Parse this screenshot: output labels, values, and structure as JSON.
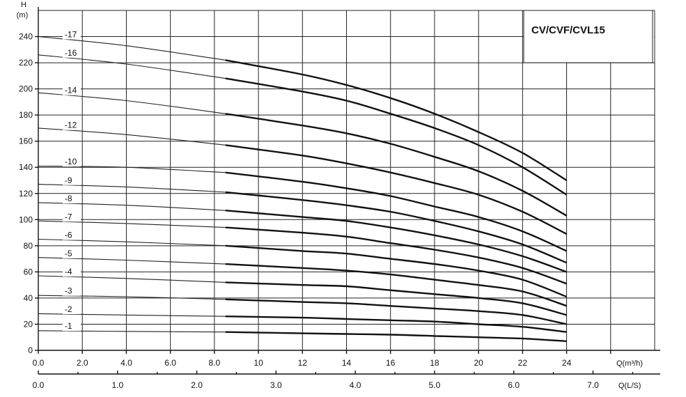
{
  "chart_data": {
    "type": "line",
    "title": "CV/CVF/CVL15",
    "ylabel_top": "H",
    "ylabel_unit": "(m)",
    "xlabel": "Q(m³/h)",
    "x2label": "Q(L/S)",
    "xlim": [
      0,
      28
    ],
    "ylim": [
      0,
      260
    ],
    "operating_range": [
      8.5,
      24
    ],
    "x_ticks": [
      "0.0",
      "2.0",
      "4.0",
      "6.0",
      "8.0",
      "10",
      "12",
      "14",
      "16",
      "18",
      "20",
      "22",
      "24"
    ],
    "x_tick_values": [
      0,
      2,
      4,
      6,
      8,
      10,
      12,
      14,
      16,
      18,
      20,
      22,
      24
    ],
    "x2_ticks": [
      "0.0",
      "1.0",
      "2.0",
      "3.0",
      "4.0",
      "5.0",
      "6.0",
      "7.0"
    ],
    "x2_tick_values": [
      0,
      1,
      2,
      3,
      4,
      5,
      6,
      7
    ],
    "y_ticks": [
      "0",
      "20",
      "40",
      "60",
      "80",
      "100",
      "120",
      "140",
      "160",
      "180",
      "200",
      "220",
      "240"
    ],
    "y_tick_values": [
      0,
      20,
      40,
      60,
      80,
      100,
      120,
      140,
      160,
      180,
      200,
      220,
      240
    ],
    "x": [
      0,
      4,
      8.5,
      12,
      14,
      16,
      18,
      20,
      22,
      24
    ],
    "series": [
      {
        "name": "-17",
        "values": [
          240,
          233,
          222,
          211,
          203,
          193,
          181,
          167,
          151,
          130
        ]
      },
      {
        "name": "-16",
        "values": [
          226,
          219,
          208,
          198,
          191,
          181,
          170,
          157,
          140,
          119
        ]
      },
      {
        "name": "-14",
        "values": [
          197,
          191,
          181,
          172,
          166,
          158,
          148,
          137,
          122,
          103
        ]
      },
      {
        "name": "-12",
        "values": [
          170,
          165,
          157,
          149,
          143,
          136,
          128,
          119,
          106,
          89
        ]
      },
      {
        "name": "-10",
        "values": [
          141,
          140,
          136,
          129,
          124,
          118,
          110,
          102,
          91,
          76
        ]
      },
      {
        "name": "-9",
        "values": [
          127,
          125,
          121,
          115,
          111,
          106,
          99,
          91,
          81,
          67
        ]
      },
      {
        "name": "-8",
        "values": [
          113,
          111,
          107,
          102,
          99,
          94,
          88,
          81,
          72,
          60
        ]
      },
      {
        "name": "-7",
        "values": [
          99,
          97,
          94,
          90,
          87,
          82,
          77,
          71,
          63,
          51
        ]
      },
      {
        "name": "-6",
        "values": [
          85,
          83,
          80,
          76,
          74,
          70,
          66,
          61,
          54,
          41
        ]
      },
      {
        "name": "-5",
        "values": [
          71,
          69,
          66,
          63,
          61,
          58,
          54,
          50,
          45,
          34
        ]
      },
      {
        "name": "-4",
        "values": [
          57,
          55,
          52,
          50,
          49,
          46,
          43,
          40,
          36,
          27
        ]
      },
      {
        "name": "-3",
        "values": [
          42,
          41,
          39,
          37,
          36,
          34,
          32,
          30,
          27,
          20
        ]
      },
      {
        "name": "-2",
        "values": [
          28,
          27,
          26,
          25,
          24,
          23,
          22,
          20,
          18,
          14
        ]
      },
      {
        "name": "-1",
        "values": [
          15,
          14.5,
          14,
          13,
          12.5,
          12,
          11,
          10,
          9,
          7
        ]
      }
    ]
  }
}
